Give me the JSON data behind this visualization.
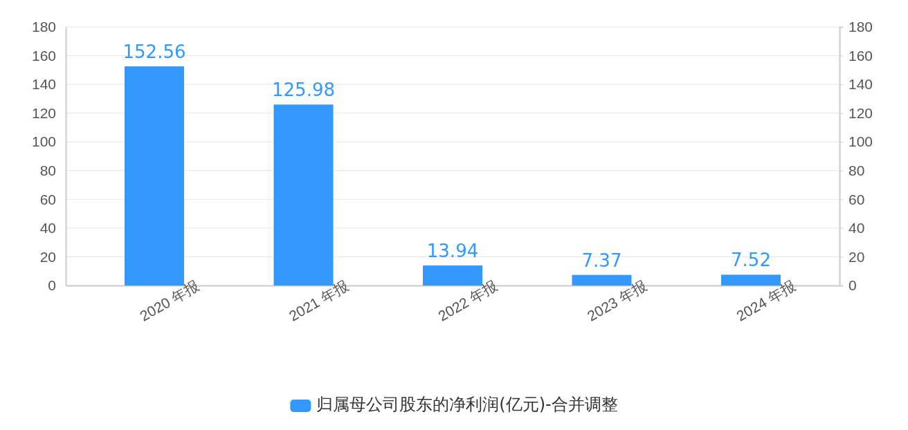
{
  "chart_data": {
    "type": "bar",
    "categories": [
      "2020 年报",
      "2021 年报",
      "2022 年报",
      "2023 年报",
      "2024 年报"
    ],
    "series": [
      {
        "name": "归属母公司股东的净利润(亿元)-合并调整",
        "color": "#3399ff",
        "values": [
          152.56,
          125.98,
          13.94,
          7.37,
          7.52
        ]
      }
    ],
    "ylim": [
      0,
      180
    ],
    "yticks": [
      0,
      20,
      40,
      60,
      80,
      100,
      120,
      140,
      160,
      180
    ],
    "y2lim": [
      0,
      180
    ],
    "y2ticks": [
      0,
      20,
      40,
      60,
      80,
      100,
      120,
      140,
      160,
      180
    ],
    "grid": "y",
    "legend": "bottom",
    "data_labels": true
  }
}
